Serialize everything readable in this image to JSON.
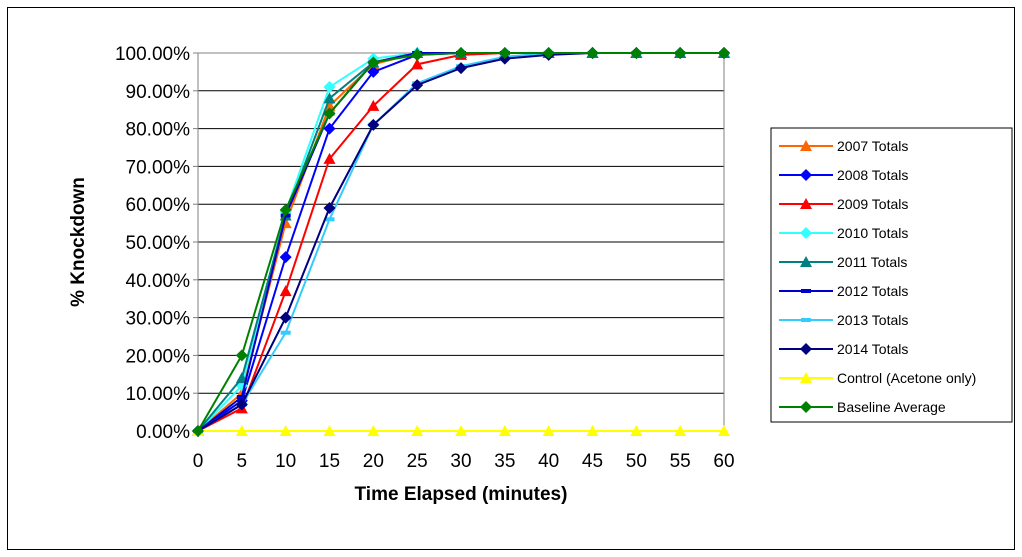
{
  "chart_data": {
    "type": "line",
    "title": "",
    "xlabel": "Time Elapsed (minutes)",
    "ylabel": "% Knockdown",
    "x": [
      0,
      5,
      10,
      15,
      20,
      25,
      30,
      35,
      40,
      45,
      50,
      55,
      60
    ],
    "ylim": [
      0,
      1
    ],
    "y_ticks": [
      "0.00%",
      "10.00%",
      "20.00%",
      "30.00%",
      "40.00%",
      "50.00%",
      "60.00%",
      "70.00%",
      "80.00%",
      "90.00%",
      "100.00%"
    ],
    "x_ticks": [
      "0",
      "5",
      "10",
      "15",
      "20",
      "25",
      "30",
      "35",
      "40",
      "45",
      "50",
      "55",
      "60"
    ],
    "grid": "horizontal",
    "legend_position": "right",
    "series": [
      {
        "name": "2007 Totals",
        "color": "#ff6600",
        "marker": "triangle",
        "values": [
          0,
          0.1,
          0.55,
          0.86,
          0.97,
          1.0,
          1.0,
          1.0,
          1.0,
          1.0,
          1.0,
          1.0,
          1.0
        ]
      },
      {
        "name": "2008 Totals",
        "color": "#0000ff",
        "marker": "diamond",
        "values": [
          0,
          0.08,
          0.46,
          0.8,
          0.95,
          0.995,
          1.0,
          1.0,
          1.0,
          1.0,
          1.0,
          1.0,
          1.0
        ]
      },
      {
        "name": "2009 Totals",
        "color": "#ff0000",
        "marker": "triangle",
        "values": [
          0,
          0.06,
          0.37,
          0.72,
          0.86,
          0.97,
          0.995,
          1.0,
          1.0,
          1.0,
          1.0,
          1.0,
          1.0
        ]
      },
      {
        "name": "2010 Totals",
        "color": "#33ffff",
        "marker": "diamond",
        "values": [
          0,
          0.12,
          0.58,
          0.91,
          0.985,
          1.0,
          1.0,
          1.0,
          1.0,
          1.0,
          1.0,
          1.0,
          1.0
        ]
      },
      {
        "name": "2011 Totals",
        "color": "#008080",
        "marker": "triangle",
        "values": [
          0,
          0.14,
          0.57,
          0.88,
          0.975,
          1.0,
          1.0,
          1.0,
          1.0,
          1.0,
          1.0,
          1.0,
          1.0
        ]
      },
      {
        "name": "2012 Totals",
        "color": "#0000cc",
        "marker": "dash",
        "values": [
          0,
          0.09,
          0.57,
          0.84,
          0.975,
          1.0,
          1.0,
          1.0,
          1.0,
          1.0,
          1.0,
          1.0,
          1.0
        ]
      },
      {
        "name": "2013 Totals",
        "color": "#33ccff",
        "marker": "dash",
        "values": [
          0,
          0.07,
          0.26,
          0.56,
          0.81,
          0.92,
          0.965,
          0.99,
          1.0,
          1.0,
          1.0,
          1.0,
          1.0
        ]
      },
      {
        "name": "2014 Totals",
        "color": "#000080",
        "marker": "diamond",
        "values": [
          0,
          0.07,
          0.3,
          0.59,
          0.81,
          0.915,
          0.96,
          0.985,
          0.995,
          1.0,
          1.0,
          1.0,
          1.0
        ]
      },
      {
        "name": "Control (Acetone only)",
        "color": "#ffff00",
        "marker": "triangle",
        "values": [
          0,
          0,
          0,
          0,
          0,
          0,
          0,
          0,
          0,
          0,
          0,
          0,
          0
        ]
      },
      {
        "name": "Baseline Average",
        "color": "#008000",
        "marker": "diamond",
        "values": [
          0,
          0.2,
          0.585,
          0.84,
          0.975,
          0.995,
          1.0,
          1.0,
          1.0,
          1.0,
          1.0,
          1.0,
          1.0
        ]
      }
    ]
  }
}
